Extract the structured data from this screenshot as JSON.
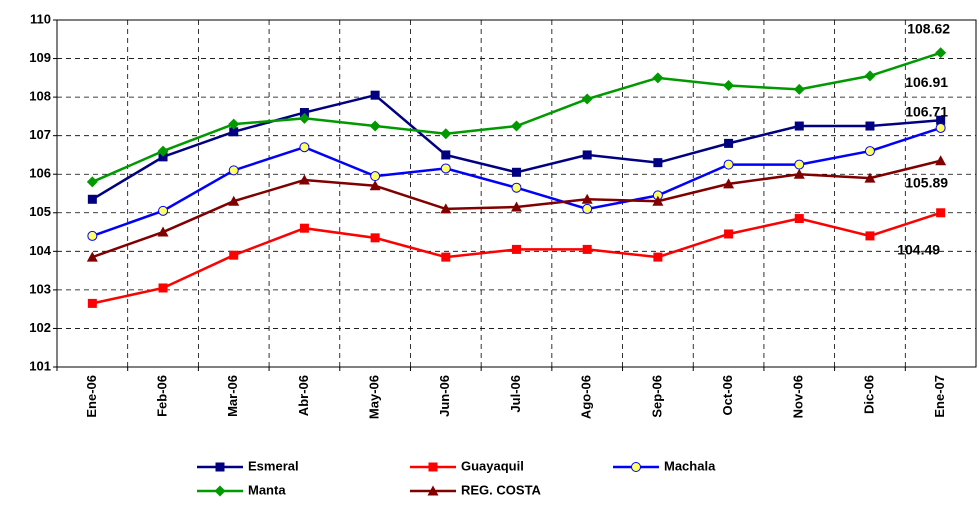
{
  "chart_data": {
    "type": "line",
    "categories": [
      "Ene-06",
      "Feb-06",
      "Mar-06",
      "Abr-06",
      "May-06",
      "Jun-06",
      "Jul-06",
      "Ago-06",
      "Sep-06",
      "Oct-06",
      "Nov-06",
      "Dic-06",
      "Ene-07"
    ],
    "series": [
      {
        "name": "Esmeral",
        "color": "#000080",
        "marker": "square",
        "values": [
          105.35,
          106.45,
          107.1,
          107.6,
          108.05,
          106.5,
          106.05,
          106.5,
          106.3,
          106.8,
          107.25,
          107.25,
          107.4
        ]
      },
      {
        "name": "Guayaquil",
        "color": "#ff0000",
        "marker": "square",
        "values": [
          102.65,
          103.05,
          103.9,
          104.6,
          104.35,
          103.85,
          104.05,
          104.05,
          103.85,
          104.45,
          104.85,
          104.4,
          105.0
        ]
      },
      {
        "name": "Machala",
        "color": "#0000ff",
        "marker": "circle",
        "values": [
          104.4,
          105.05,
          106.1,
          106.7,
          105.95,
          106.15,
          105.65,
          105.1,
          105.45,
          106.25,
          106.25,
          106.6,
          107.2
        ]
      },
      {
        "name": "Manta",
        "color": "#009900",
        "marker": "diamond",
        "values": [
          105.8,
          106.6,
          107.3,
          107.45,
          107.25,
          107.05,
          107.25,
          107.95,
          108.5,
          108.3,
          108.2,
          108.55,
          109.15
        ]
      },
      {
        "name": "REG. COSTA",
        "color": "#800000",
        "marker": "triangle",
        "values": [
          103.85,
          104.5,
          105.3,
          105.85,
          105.7,
          105.1,
          105.15,
          105.35,
          105.3,
          105.75,
          106.0,
          105.9,
          106.35
        ]
      }
    ],
    "annotations": [
      {
        "series": 3,
        "text": "108.62"
      },
      {
        "series": 0,
        "text": "106.91"
      },
      {
        "series": 2,
        "text": "106.71"
      },
      {
        "series": 4,
        "text": "105.89"
      },
      {
        "series": 1,
        "text": "104.49"
      }
    ],
    "ylim": [
      101,
      110
    ],
    "yticks": [
      101,
      102,
      103,
      104,
      105,
      106,
      107,
      108,
      109,
      110
    ],
    "grid": true
  }
}
